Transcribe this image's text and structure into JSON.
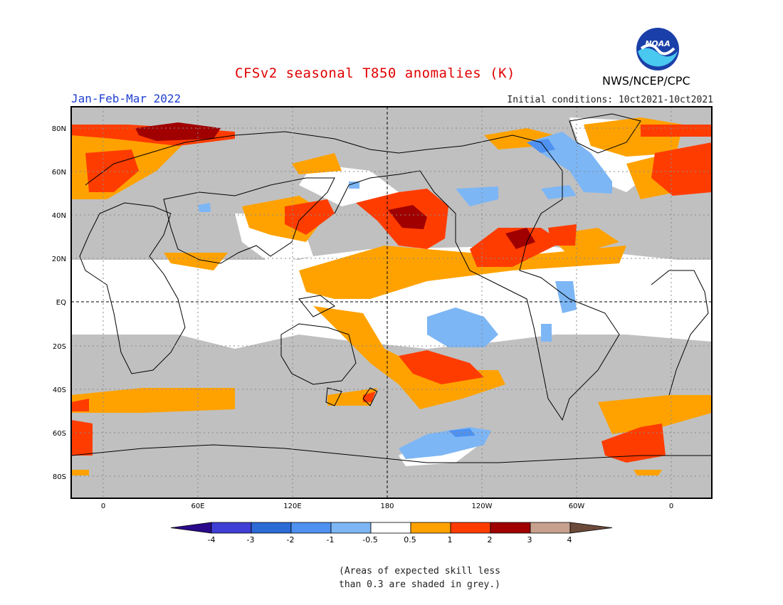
{
  "header": {
    "title": "CFSv2 seasonal T850 anomalies (K)",
    "period": "Jan-Feb-Mar 2022",
    "initial_conditions": "Initial conditions: 10ct2021-10ct2021",
    "org": "NWS/NCEP/CPC",
    "logo_text": "NOAA"
  },
  "axes": {
    "lat_labels": [
      "80N",
      "60N",
      "40N",
      "20N",
      "EQ",
      "20S",
      "40S",
      "60S",
      "80S"
    ],
    "lon_labels": [
      "0",
      "60E",
      "120E",
      "180",
      "120W",
      "60W",
      "0"
    ]
  },
  "colorbar": {
    "ticks": [
      "-4",
      "-3",
      "-2",
      "-1",
      "-0.5",
      "0.5",
      "1",
      "2",
      "3",
      "4"
    ],
    "colors": [
      "#2a0a8a",
      "#3f3fd6",
      "#2c6ad6",
      "#4e91f0",
      "#7db6f5",
      "#ffffff",
      "#ffa200",
      "#ff3c00",
      "#a00000",
      "#c7a08e",
      "#6b4a3a"
    ]
  },
  "note": {
    "line1": "(Areas of expected skill less",
    "line2": "than 0.3 are shaded in grey.)"
  }
}
